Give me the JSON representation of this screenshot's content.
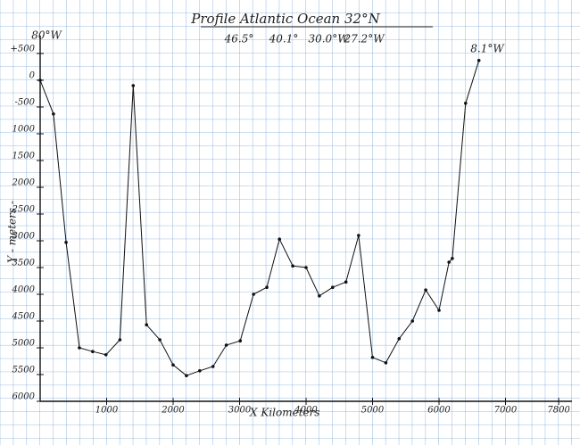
{
  "chart_data": {
    "type": "line",
    "title": "Profile Atlantic Ocean 32°N",
    "annotations": [
      "46.5°",
      "40.1°",
      "30.0°W",
      "27.2°W",
      "80°W",
      "8.1°W"
    ],
    "xlabel": "X Kilometers",
    "ylabel": "Y - meters -",
    "x": [
      0,
      200,
      390,
      590,
      790,
      990,
      1200,
      1400,
      1600,
      1800,
      2000,
      2200,
      2400,
      2600,
      2800,
      3010,
      3210,
      3410,
      3600,
      3800,
      4000,
      4200,
      4400,
      4600,
      4790,
      5000,
      5200,
      5400,
      5600,
      5800,
      6000,
      6150,
      6200,
      6400,
      6600
    ],
    "series": [
      {
        "name": "Profile",
        "color": "#111111",
        "values": [
          0,
          -630,
          -3030,
          -5000,
          -5070,
          -5130,
          -4850,
          -100,
          -4570,
          -4850,
          -5320,
          -5520,
          -5430,
          -5350,
          -4950,
          -4870,
          -4000,
          -3870,
          -2970,
          -3470,
          -3500,
          -4030,
          -3870,
          -3770,
          -2900,
          -5180,
          -5280,
          -4830,
          -4500,
          -3920,
          -4300,
          -3400,
          -3330,
          -430,
          370
        ]
      }
    ],
    "xlim": [
      0,
      8000
    ],
    "ylim": [
      -6000,
      1000
    ],
    "xticks": [
      1000,
      2000,
      3000,
      4000,
      5000,
      6000,
      7000,
      7800
    ],
    "yticks": [
      {
        "value": 500,
        "label": "+500"
      },
      0,
      {
        "value": -500,
        "label": "-500"
      },
      {
        "value": -1000,
        "label": "1000"
      },
      {
        "value": -1500,
        "label": "1500"
      },
      {
        "value": -2000,
        "label": "2000"
      },
      {
        "value": -2500,
        "label": "2500"
      },
      {
        "value": -3000,
        "label": "3000"
      },
      {
        "value": -3500,
        "label": "3500"
      },
      {
        "value": -4000,
        "label": "4000"
      },
      {
        "value": -4500,
        "label": "4500"
      },
      {
        "value": -5000,
        "label": "5000"
      },
      {
        "value": -5500,
        "label": "5500"
      },
      {
        "value": -6000,
        "label": "6000"
      }
    ],
    "grid": true
  }
}
